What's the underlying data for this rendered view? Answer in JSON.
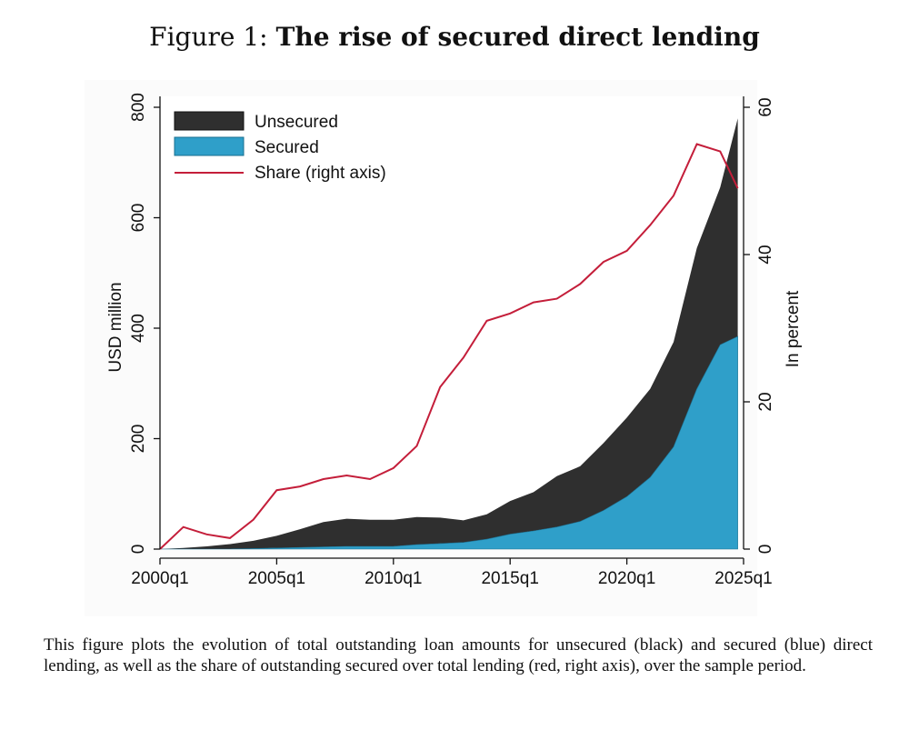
{
  "figure": {
    "label": "Figure 1:",
    "title": "The rise of secured direct lending"
  },
  "caption": "This figure plots the evolution of total outstanding loan amounts for unsecured (black) and secured (blue) direct lending, as well as the share of outstanding secured over total lending (red, right axis), over the sample period.",
  "colors": {
    "unsecured": "#2f2f2f",
    "secured": "#2f9fc9",
    "share": "#c41e3a",
    "plot_background": "#ffffff"
  },
  "chart_data": {
    "type": "area",
    "xlabel": "",
    "ylabel": "USD million",
    "ylabel_right": "In percent",
    "ylim": [
      0,
      800
    ],
    "ylim_right": [
      0,
      60
    ],
    "yticks": [
      0,
      200,
      400,
      600,
      800
    ],
    "yticks_right": [
      0,
      20,
      40,
      60
    ],
    "xlim": [
      2000.0,
      2025.0
    ],
    "xticks": [
      {
        "value": 2000.0,
        "label": "2000q1"
      },
      {
        "value": 2005.0,
        "label": "2005q1"
      },
      {
        "value": 2010.0,
        "label": "2010q1"
      },
      {
        "value": 2015.0,
        "label": "2015q1"
      },
      {
        "value": 2020.0,
        "label": "2020q1"
      },
      {
        "value": 2025.0,
        "label": "2025q1"
      }
    ],
    "grid": false,
    "legend_position": "top-left",
    "legend": [
      "Unsecured",
      "Secured",
      "Share (right axis)"
    ],
    "x": [
      2000.0,
      2001.0,
      2002.0,
      2003.0,
      2004.0,
      2005.0,
      2006.0,
      2007.0,
      2008.0,
      2009.0,
      2010.0,
      2011.0,
      2012.0,
      2013.0,
      2014.0,
      2015.0,
      2016.0,
      2017.0,
      2018.0,
      2019.0,
      2020.0,
      2021.0,
      2022.0,
      2023.0,
      2024.0,
      2024.75
    ],
    "series": [
      {
        "name": "Secured",
        "axis": "left",
        "style": "stacked-area",
        "values": [
          0,
          0,
          0,
          0,
          1,
          2,
          3,
          4,
          5,
          5,
          5,
          8,
          10,
          12,
          18,
          27,
          33,
          40,
          50,
          70,
          95,
          130,
          185,
          290,
          370,
          385
        ]
      },
      {
        "name": "Unsecured",
        "axis": "left",
        "style": "stacked-area",
        "values": [
          0,
          2,
          5,
          9,
          14,
          22,
          33,
          45,
          50,
          48,
          48,
          50,
          47,
          40,
          45,
          60,
          70,
          92,
          100,
          122,
          143,
          160,
          190,
          255,
          285,
          395
        ]
      },
      {
        "name": "Share (right axis)",
        "axis": "right",
        "style": "line",
        "values": [
          0,
          3,
          2,
          1.5,
          4,
          8,
          8.5,
          9.5,
          10,
          9.5,
          11,
          14,
          22,
          26,
          31,
          32,
          33.5,
          34,
          36,
          39,
          40.5,
          44,
          48,
          55,
          54,
          49
        ]
      }
    ]
  }
}
